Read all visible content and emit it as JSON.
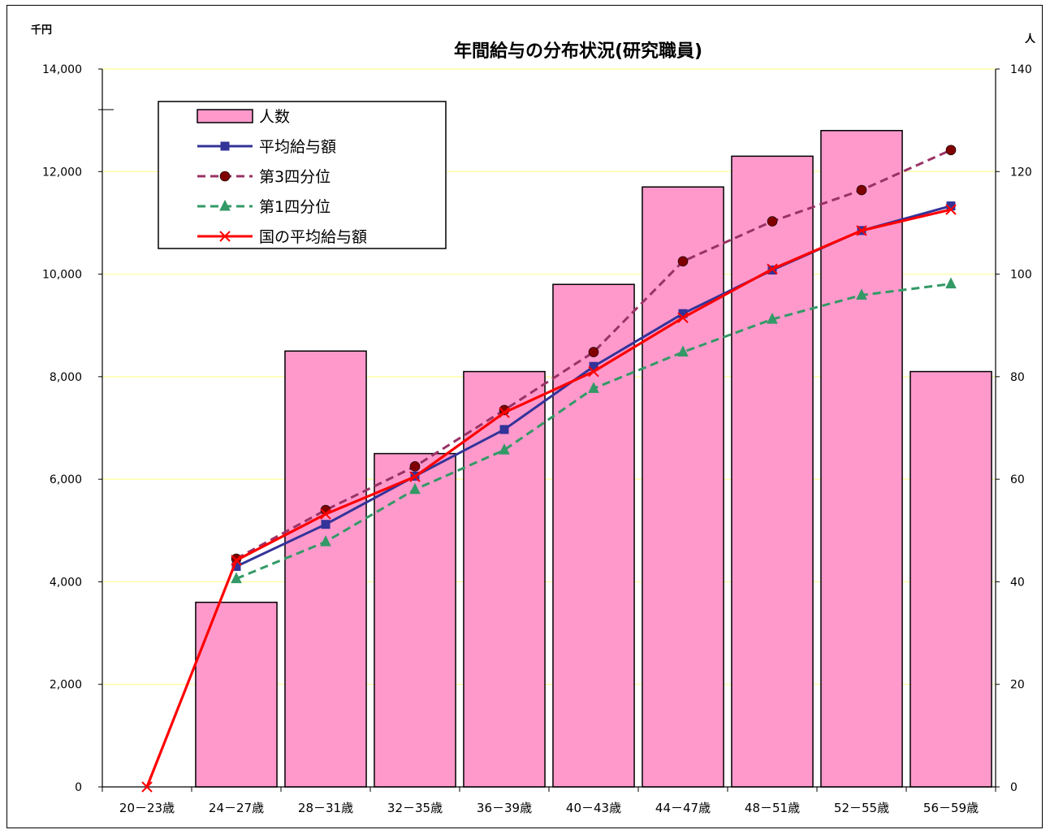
{
  "chart_data": {
    "type": "bar",
    "title": "年間給与の分布状況(研究職員)",
    "ylabel_left": "千円",
    "ylabel_right": "人",
    "ylim_left": [
      0,
      14000
    ],
    "ylim_right": [
      0,
      140
    ],
    "y_ticks_left": [
      "0",
      "2,000",
      "4,000",
      "6,000",
      "8,000",
      "10,000",
      "12,000",
      "14,000"
    ],
    "y_ticks_right": [
      "0",
      "20",
      "40",
      "60",
      "80",
      "100",
      "120",
      "140"
    ],
    "grid": true,
    "legend_position": "top-left",
    "categories": [
      "20－23歳",
      "24－27歳",
      "28－31歳",
      "32－35歳",
      "36－39歳",
      "40－43歳",
      "44－47歳",
      "48－51歳",
      "52－55歳",
      "56－59歳"
    ],
    "series": [
      {
        "name": "人数",
        "type": "bar",
        "axis": "right",
        "color": "#ff99cc",
        "values": [
          0,
          36,
          85,
          65,
          81,
          98,
          117,
          123,
          128,
          81
        ]
      },
      {
        "name": "平均給与額",
        "type": "line",
        "axis": "left",
        "color": "#333399",
        "marker": "square",
        "dash": "solid",
        "values": [
          null,
          4300,
          5120,
          6060,
          6970,
          8200,
          9230,
          10080,
          10850,
          11330
        ]
      },
      {
        "name": "第3四分位",
        "type": "line",
        "axis": "left",
        "color": "#993366",
        "marker": "circle",
        "marker_color": "#800000",
        "dash": "dashed",
        "values": [
          null,
          4450,
          5400,
          6250,
          7350,
          8480,
          10250,
          11030,
          11640,
          12420
        ]
      },
      {
        "name": "第1四分位",
        "type": "line",
        "axis": "left",
        "color": "#339966",
        "marker": "triangle",
        "dash": "dashed",
        "values": [
          null,
          4060,
          4780,
          5800,
          6570,
          7770,
          8480,
          9120,
          9590,
          9810
        ]
      },
      {
        "name": "国の平均給与額",
        "type": "line",
        "axis": "left",
        "color": "#ff0000",
        "marker": "x",
        "dash": "solid",
        "values": [
          0,
          4420,
          5320,
          6050,
          7300,
          8100,
          9150,
          10100,
          10850,
          11260
        ]
      }
    ]
  }
}
